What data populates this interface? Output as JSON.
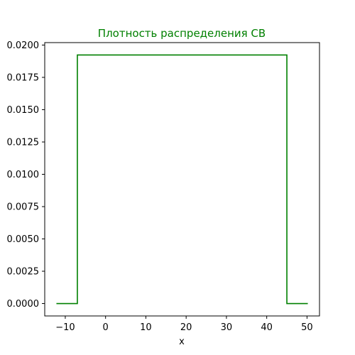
{
  "chart_data": {
    "type": "line",
    "title": "Плотность распределения СВ",
    "xlabel": "x",
    "ylabel": "",
    "xlim": [
      -15.1,
      53.1
    ],
    "ylim": [
      -0.00096,
      0.02019
    ],
    "grid": false,
    "colors": {
      "line": "#008000",
      "title": "#008000"
    },
    "x_ticks": [
      {
        "value": -10,
        "label": "−10"
      },
      {
        "value": 0,
        "label": "0"
      },
      {
        "value": 10,
        "label": "10"
      },
      {
        "value": 20,
        "label": "20"
      },
      {
        "value": 30,
        "label": "30"
      },
      {
        "value": 40,
        "label": "40"
      },
      {
        "value": 50,
        "label": "50"
      }
    ],
    "y_ticks": [
      {
        "value": 0.0,
        "label": "0.0000"
      },
      {
        "value": 0.0025,
        "label": "0.0025"
      },
      {
        "value": 0.005,
        "label": "0.0050"
      },
      {
        "value": 0.0075,
        "label": "0.0075"
      },
      {
        "value": 0.01,
        "label": "0.0100"
      },
      {
        "value": 0.0125,
        "label": "0.0125"
      },
      {
        "value": 0.015,
        "label": "0.0150"
      },
      {
        "value": 0.0175,
        "label": "0.0175"
      },
      {
        "value": 0.02,
        "label": "0.0200"
      }
    ],
    "series": [
      {
        "x": [
          -12.2,
          -7,
          -7,
          45,
          45,
          50.2
        ],
        "y": [
          0,
          0,
          0.01923,
          0.01923,
          0,
          0
        ]
      }
    ]
  }
}
